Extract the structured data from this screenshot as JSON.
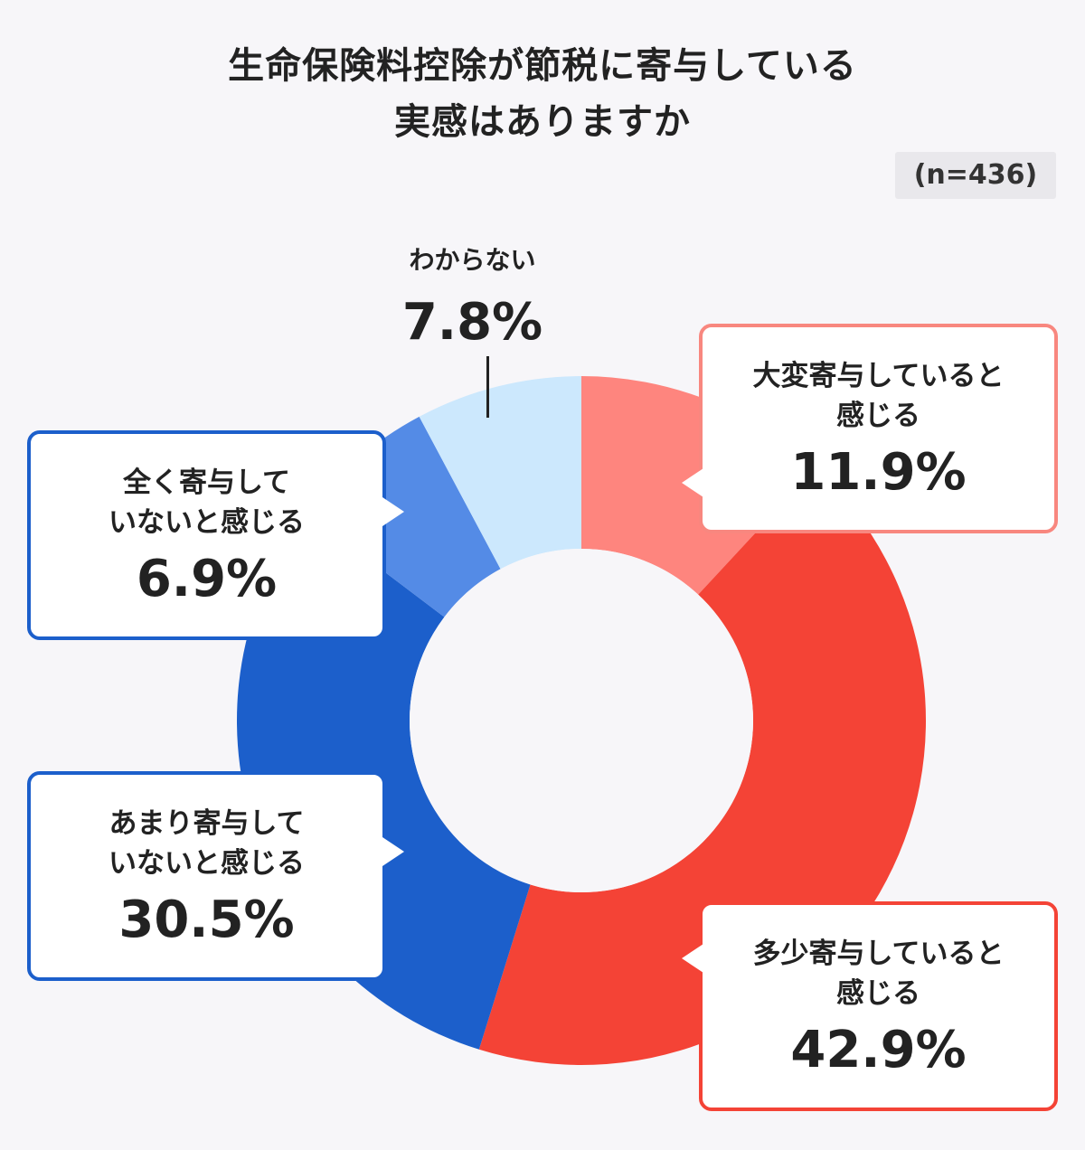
{
  "header": {
    "title_line1": "生命保険料控除が節税に寄与している",
    "title_line2": "実感はありますか",
    "sample_size": "(n=436)"
  },
  "labels": {
    "l0": {
      "text1": "大変寄与していると",
      "text2": "感じる",
      "pct": "11.9%"
    },
    "l1": {
      "text1": "多少寄与していると",
      "text2": "感じる",
      "pct": "42.9%"
    },
    "l2": {
      "text1": "あまり寄与して",
      "text2": "いないと感じる",
      "pct": "30.5%"
    },
    "l3": {
      "text1": "全く寄与して",
      "text2": "いないと感じる",
      "pct": "6.9%"
    },
    "l4": {
      "text1": "わからない",
      "pct": "7.8%"
    }
  },
  "chart_data": {
    "type": "pie",
    "subtype": "donut",
    "title": "生命保険料控除が節税に寄与している実感はありますか",
    "n": 436,
    "start_angle": "12 o'clock, clockwise",
    "categories": [
      "大変寄与していると感じる",
      "多少寄与していると感じる",
      "あまり寄与していないと感じる",
      "全く寄与していないと感じる",
      "わからない"
    ],
    "values": [
      11.9,
      42.9,
      30.5,
      6.9,
      7.8
    ],
    "unit": "%",
    "colors": [
      "#fe857e",
      "#f44336",
      "#1c5fcb",
      "#548be6",
      "#cce8fd"
    ],
    "legend": "callout labels"
  }
}
